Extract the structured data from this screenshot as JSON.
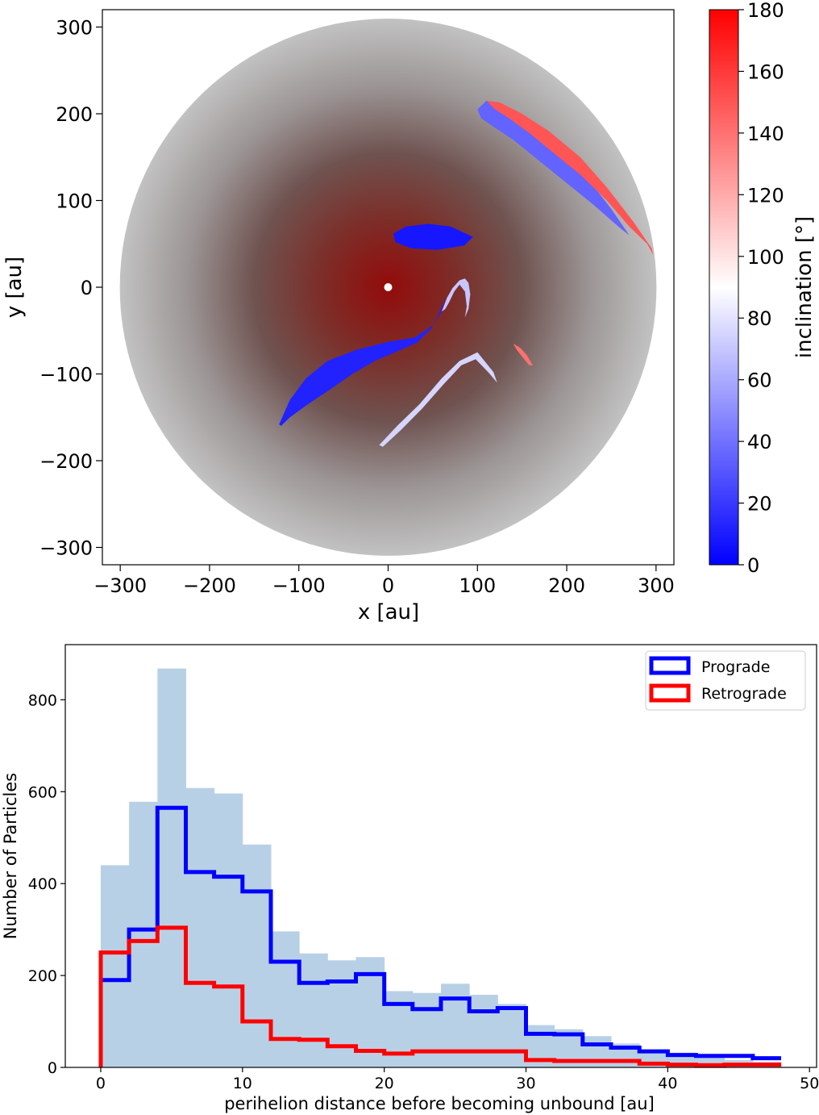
{
  "chart_data": [
    {
      "type": "scatter",
      "title": "",
      "xlabel": "x [au]",
      "ylabel": "y [au]",
      "xlim": [
        -320,
        320
      ],
      "ylim": [
        -320,
        320
      ],
      "xticks": [
        -300,
        -200,
        -100,
        0,
        100,
        200,
        300
      ],
      "yticks": [
        -300,
        -200,
        -100,
        0,
        100,
        200,
        300
      ],
      "xtick_labels": [
        "−300",
        "−200",
        "−100",
        "0",
        "100",
        "200",
        "300"
      ],
      "ytick_labels": [
        "−300",
        "−200",
        "−100",
        "0",
        "100",
        "200",
        "300"
      ],
      "background_disk_radius": 305,
      "colorbar": {
        "label": "inclination [°]",
        "min": 0,
        "max": 180,
        "ticks": [
          0,
          20,
          40,
          60,
          80,
          100,
          120,
          140,
          160,
          180
        ],
        "tick_labels": [
          "0",
          "20",
          "40",
          "60",
          "80",
          "100",
          "120",
          "140",
          "160",
          "180"
        ],
        "colors": [
          "#0000ff",
          "#ffffff",
          "#ff0000"
        ]
      },
      "central_star": {
        "x": 0,
        "y": 0
      },
      "regions": [
        {
          "name": "upper-right-lobe-blue",
          "inclination": 35,
          "points": [
            [
              100,
              205
            ],
            [
              110,
              215
            ],
            [
              122,
              212
            ],
            [
              150,
              195
            ],
            [
              190,
              160
            ],
            [
              220,
              130
            ],
            [
              250,
              90
            ],
            [
              270,
              60
            ],
            [
              260,
              68
            ],
            [
              230,
              95
            ],
            [
              200,
              120
            ],
            [
              170,
              145
            ],
            [
              140,
              170
            ],
            [
              118,
              185
            ],
            [
              104,
              195
            ]
          ]
        },
        {
          "name": "upper-right-lobe-red",
          "inclination": 150,
          "points": [
            [
              110,
              215
            ],
            [
              125,
              213
            ],
            [
              150,
              200
            ],
            [
              180,
              180
            ],
            [
              215,
              150
            ],
            [
              245,
              115
            ],
            [
              275,
              75
            ],
            [
              295,
              45
            ],
            [
              297,
              37
            ],
            [
              290,
              50
            ],
            [
              270,
              70
            ],
            [
              245,
              100
            ],
            [
              215,
              130
            ],
            [
              185,
              155
            ],
            [
              158,
              178
            ],
            [
              135,
              195
            ],
            [
              120,
              205
            ]
          ]
        },
        {
          "name": "upper-blob",
          "inclination": 8,
          "points": [
            [
              6,
              62
            ],
            [
              20,
              70
            ],
            [
              45,
              73
            ],
            [
              70,
              70
            ],
            [
              95,
              58
            ],
            [
              85,
              48
            ],
            [
              55,
              43
            ],
            [
              25,
              45
            ],
            [
              8,
              52
            ]
          ]
        },
        {
          "name": "left-elongated-lobe",
          "inclination": 12,
          "points": [
            [
              -122,
              -158
            ],
            [
              -110,
              -130
            ],
            [
              -92,
              -105
            ],
            [
              -68,
              -85
            ],
            [
              -35,
              -72
            ],
            [
              0,
              -63
            ],
            [
              30,
              -58
            ],
            [
              50,
              -44
            ],
            [
              60,
              -28
            ],
            [
              64,
              -12
            ],
            [
              58,
              -28
            ],
            [
              48,
              -48
            ],
            [
              32,
              -64
            ],
            [
              10,
              -74
            ],
            [
              -15,
              -85
            ],
            [
              -40,
              -100
            ],
            [
              -65,
              -118
            ],
            [
              -90,
              -135
            ],
            [
              -110,
              -150
            ],
            [
              -120,
              -160
            ]
          ]
        },
        {
          "name": "left-lobe-hook",
          "inclination": 70,
          "points": [
            [
              60,
              -28
            ],
            [
              66,
              -12
            ],
            [
              72,
              -1
            ],
            [
              80,
              8
            ],
            [
              86,
              10
            ],
            [
              90,
              5
            ],
            [
              92,
              -8
            ],
            [
              90,
              -25
            ],
            [
              86,
              -35
            ],
            [
              88,
              -22
            ],
            [
              86,
              -5
            ],
            [
              80,
              3
            ],
            [
              74,
              -5
            ],
            [
              68,
              -18
            ],
            [
              64,
              -25
            ]
          ]
        },
        {
          "name": "lower-arc",
          "inclination": 75,
          "points": [
            [
              -10,
              -182
            ],
            [
              10,
              -160
            ],
            [
              35,
              -135
            ],
            [
              60,
              -105
            ],
            [
              80,
              -85
            ],
            [
              100,
              -75
            ],
            [
              118,
              -98
            ],
            [
              122,
              -110
            ],
            [
              112,
              -98
            ],
            [
              98,
              -83
            ],
            [
              82,
              -90
            ],
            [
              62,
              -112
            ],
            [
              38,
              -140
            ],
            [
              14,
              -165
            ],
            [
              -6,
              -184
            ]
          ]
        },
        {
          "name": "small-red-arc",
          "inclination": 140,
          "points": [
            [
              140,
              -65
            ],
            [
              148,
              -70
            ],
            [
              155,
              -78
            ],
            [
              162,
              -90
            ],
            [
              158,
              -90
            ],
            [
              150,
              -80
            ],
            [
              144,
              -72
            ]
          ]
        }
      ]
    },
    {
      "type": "bar",
      "title": "",
      "xlabel": "perihelion distance before becoming unbound [au]",
      "ylabel": "Number of Particles",
      "xlim": [
        -2.5,
        50.5
      ],
      "ylim": [
        0,
        920
      ],
      "xticks": [
        0,
        10,
        20,
        30,
        40,
        50
      ],
      "yticks": [
        0,
        200,
        400,
        600,
        800
      ],
      "bin_edges": [
        0,
        2,
        4,
        6,
        8,
        10,
        12,
        14,
        16,
        18,
        20,
        22,
        24,
        26,
        28,
        30,
        32,
        34,
        36,
        38,
        40,
        42,
        44,
        46,
        48
      ],
      "series": [
        {
          "name": "Total",
          "style": "filled",
          "color": "#b8d0e6",
          "values": [
            440,
            578,
            868,
            608,
            596,
            485,
            296,
            248,
            233,
            240,
            166,
            162,
            182,
            158,
            138,
            92,
            83,
            68,
            52,
            34,
            32,
            22,
            16,
            12
          ]
        },
        {
          "name": "Prograde",
          "style": "step",
          "color": "#0000ff",
          "values": [
            190,
            300,
            565,
            425,
            415,
            383,
            230,
            184,
            187,
            203,
            138,
            127,
            150,
            122,
            129,
            73,
            72,
            50,
            43,
            35,
            27,
            25,
            25,
            20
          ]
        },
        {
          "name": "Retrograde",
          "style": "step",
          "color": "#ff0000",
          "values": [
            250,
            275,
            304,
            184,
            176,
            100,
            62,
            60,
            46,
            36,
            30,
            35,
            35,
            35,
            35,
            16,
            14,
            14,
            14,
            8,
            6,
            5,
            6,
            6
          ]
        }
      ],
      "legend": {
        "position": "top-right",
        "entries": [
          "Prograde",
          "Retrograde"
        ]
      }
    }
  ]
}
